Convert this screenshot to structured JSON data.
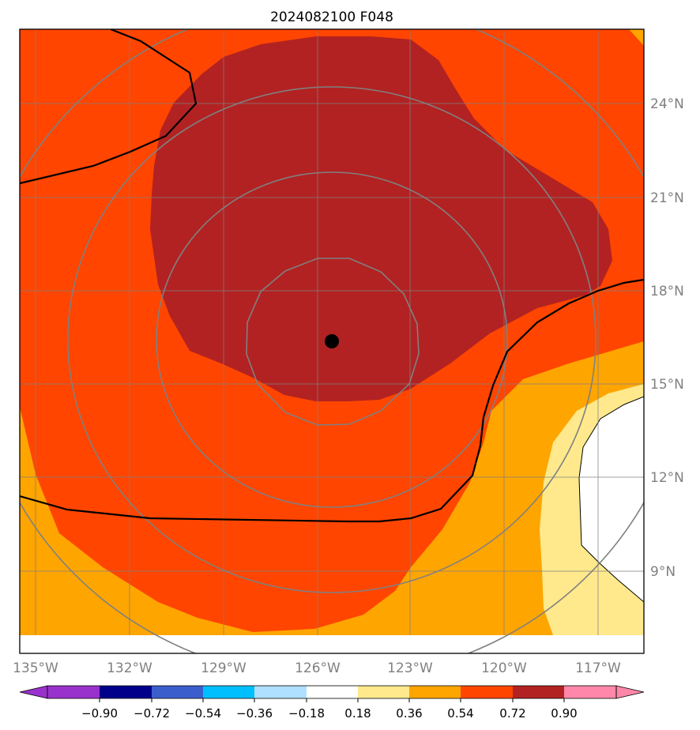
{
  "title": "2024082100 F048",
  "colors": {
    "darkred": "#b22222",
    "orangered": "#ff4500",
    "orange": "#ffa500",
    "lightyellow": "#ffe98c",
    "white": "#ffffff",
    "grid": "#808080",
    "coast": "#000000"
  },
  "map": {
    "lon_labels": [
      "135°W",
      "132°W",
      "129°W",
      "126°W",
      "123°W",
      "120°W",
      "117°W"
    ],
    "lat_labels": [
      "24°N",
      "21°N",
      "18°N",
      "15°N",
      "12°N",
      "9°N"
    ],
    "center_marker": {
      "name": "storm-center",
      "lon": -125.6,
      "lat": 16.4
    },
    "range_rings": 4
  },
  "colorbar": {
    "ticks": [
      "−0.90",
      "−0.72",
      "−0.54",
      "−0.36",
      "−0.18",
      "0.18",
      "0.36",
      "0.54",
      "0.72",
      "0.90"
    ],
    "colors": [
      "#9932cc",
      "#00008b",
      "#3a5fcd",
      "#00bfff",
      "#b0e0ff",
      "#ffffff",
      "#ffe98c",
      "#ffa500",
      "#ff4500",
      "#b22222",
      "#ff88aa"
    ]
  }
}
